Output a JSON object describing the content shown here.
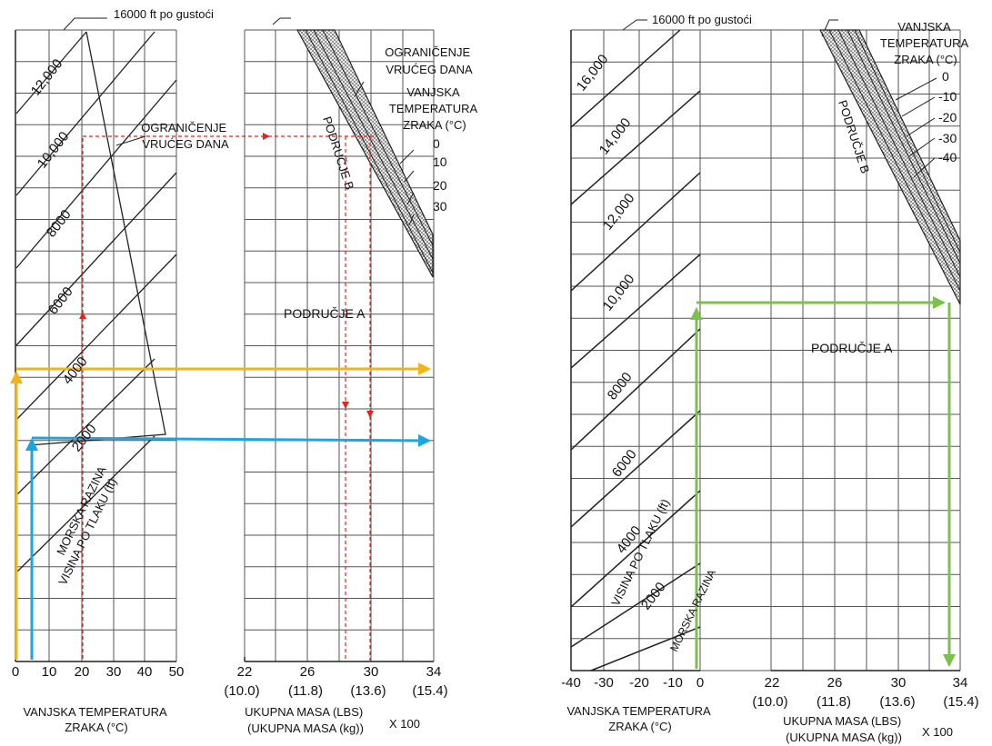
{
  "colors": {
    "ink": "#222222",
    "grid": "#555555",
    "red_path": "#e0261c",
    "orange_path": "#f2b418",
    "blue_path": "#1ea4df",
    "green_path": "#7cc14a",
    "hatch": "#8a8a8a"
  },
  "left_chart": {
    "density_altitude_note": "16000 ft po gustoći",
    "hot_day_limit_top": [
      "OGRANIČENJE",
      "VRUĆEG DANA"
    ],
    "hot_day_limit_mid": [
      "OGRANIČENJE",
      "VRUĆEG DANA"
    ],
    "oat_header": [
      "VANJSKA",
      "TEMPERATURA",
      "ZRAKA (°C)"
    ],
    "oat_values": [
      "0",
      "10",
      "20",
      "30"
    ],
    "zone_a": "PODRUČJE A",
    "zone_b": "PODRUČJE B",
    "altitude_labels": [
      "12,000",
      "10,000",
      "8000",
      "6000",
      "4000",
      "2000"
    ],
    "sea_level": "MORSKA RAZINA",
    "pressure_alt": "VISINA PO TLAKU (ft)",
    "temp_ticks": [
      "0",
      "10",
      "20",
      "30",
      "40",
      "50"
    ],
    "mass_ticks": [
      "22",
      "26",
      "30",
      "34"
    ],
    "mass_kg_ticks": [
      "(10.0)",
      "(11.8)",
      "(13.6)",
      "(15.4)"
    ],
    "temp_axis_title": [
      "VANJSKA TEMPERATURA",
      "ZRAKA (°C)"
    ],
    "mass_axis_title": [
      "UKUPNA MASA (LBS)",
      "(UKUPNA MASA (kg))"
    ],
    "mass_multiplier": "X 100"
  },
  "right_chart": {
    "density_altitude_note": "16000 ft po gustoći",
    "oat_header": [
      "VANJSKA",
      "TEMPERATURA",
      "ZRAKA (°C)"
    ],
    "oat_values": [
      "0",
      "-10",
      "-20",
      "-30",
      "-40"
    ],
    "zone_a": "PODRUČJE A",
    "zone_b": "PODRUČJE B",
    "altitude_labels": [
      "16,000",
      "14,000",
      "12,000",
      "10,000",
      "8000",
      "6000",
      "4000",
      "2000"
    ],
    "sea_level": "MORSKA RAZINA",
    "pressure_alt": "VISINA PO TLAKU (ft)",
    "temp_ticks": [
      "-40",
      "-30",
      "-20",
      "-10",
      "0"
    ],
    "mass_ticks": [
      "22",
      "26",
      "30",
      "34"
    ],
    "mass_kg_ticks": [
      "(10.0)",
      "(11.8)",
      "(13.6)",
      "(15.4)"
    ],
    "temp_axis_title": [
      "VANJSKA TEMPERATURA",
      "ZRAKA (°C)"
    ],
    "mass_axis_title": [
      "UKUPNA MASA (LBS)",
      "(UKUPNA MASA (kg))"
    ],
    "mass_multiplier": "X 100"
  },
  "chart_data": [
    {
      "type": "line",
      "description_role": "hover ceiling chart, hot conditions",
      "x_left": {
        "label": "VANJSKA TEMPERATURA ZRAKA (°C)",
        "ticks": [
          0,
          10,
          20,
          30,
          40,
          50
        ],
        "range": [
          0,
          50
        ]
      },
      "x_right": {
        "label": "UKUPNA MASA (LBS) (UKUPNA MASA (kg)) X 100",
        "ticks_lbs": [
          22,
          26,
          30,
          34
        ],
        "ticks_kg": [
          10.0,
          11.8,
          13.6,
          15.4
        ],
        "range": [
          22,
          34
        ]
      },
      "y": {
        "label": "VISINA PO TLAKU (ft)",
        "range": [
          0,
          14000
        ]
      },
      "pressure_altitude_lines_ft": [
        0,
        2000,
        4000,
        6000,
        8000,
        10000,
        12000
      ],
      "oat_lines_c": [
        0,
        10,
        20,
        30
      ],
      "example_paths": [
        {
          "color": "red",
          "oat_c": 20,
          "pressure_alt_ft": 10000,
          "mass_x100_lbs": [
            28.2,
            29.8
          ]
        },
        {
          "color": "orange",
          "oat_c": 0,
          "pressure_alt_ft": 4000,
          "mass_x100_lbs": 34
        },
        {
          "color": "blue",
          "oat_c": 5,
          "pressure_alt_ft": 1800,
          "mass_x100_lbs": 34
        }
      ]
    },
    {
      "type": "line",
      "description_role": "hover ceiling chart, cold conditions",
      "x_left": {
        "label": "VANJSKA TEMPERATURA ZRAKA (°C)",
        "ticks": [
          -40,
          -30,
          -20,
          -10,
          0
        ],
        "range": [
          -40,
          0
        ]
      },
      "x_right": {
        "label": "UKUPNA MASA (LBS) (UKUPNA MASA (kg)) X 100",
        "ticks_lbs": [
          22,
          26,
          30,
          34
        ],
        "ticks_kg": [
          10.0,
          11.8,
          13.6,
          15.4
        ],
        "range": [
          22,
          34
        ]
      },
      "y": {
        "label": "VISINA PO TLAKU (ft)",
        "range": [
          0,
          16000
        ]
      },
      "pressure_altitude_lines_ft": [
        0,
        2000,
        4000,
        6000,
        8000,
        10000,
        12000,
        14000,
        16000
      ],
      "oat_lines_c": [
        0,
        -10,
        -20,
        -30,
        -40
      ],
      "example_paths": [
        {
          "color": "green",
          "oat_c": 0,
          "pressure_alt_ft": 10000,
          "mass_x100_lbs": 33.2
        }
      ]
    }
  ]
}
